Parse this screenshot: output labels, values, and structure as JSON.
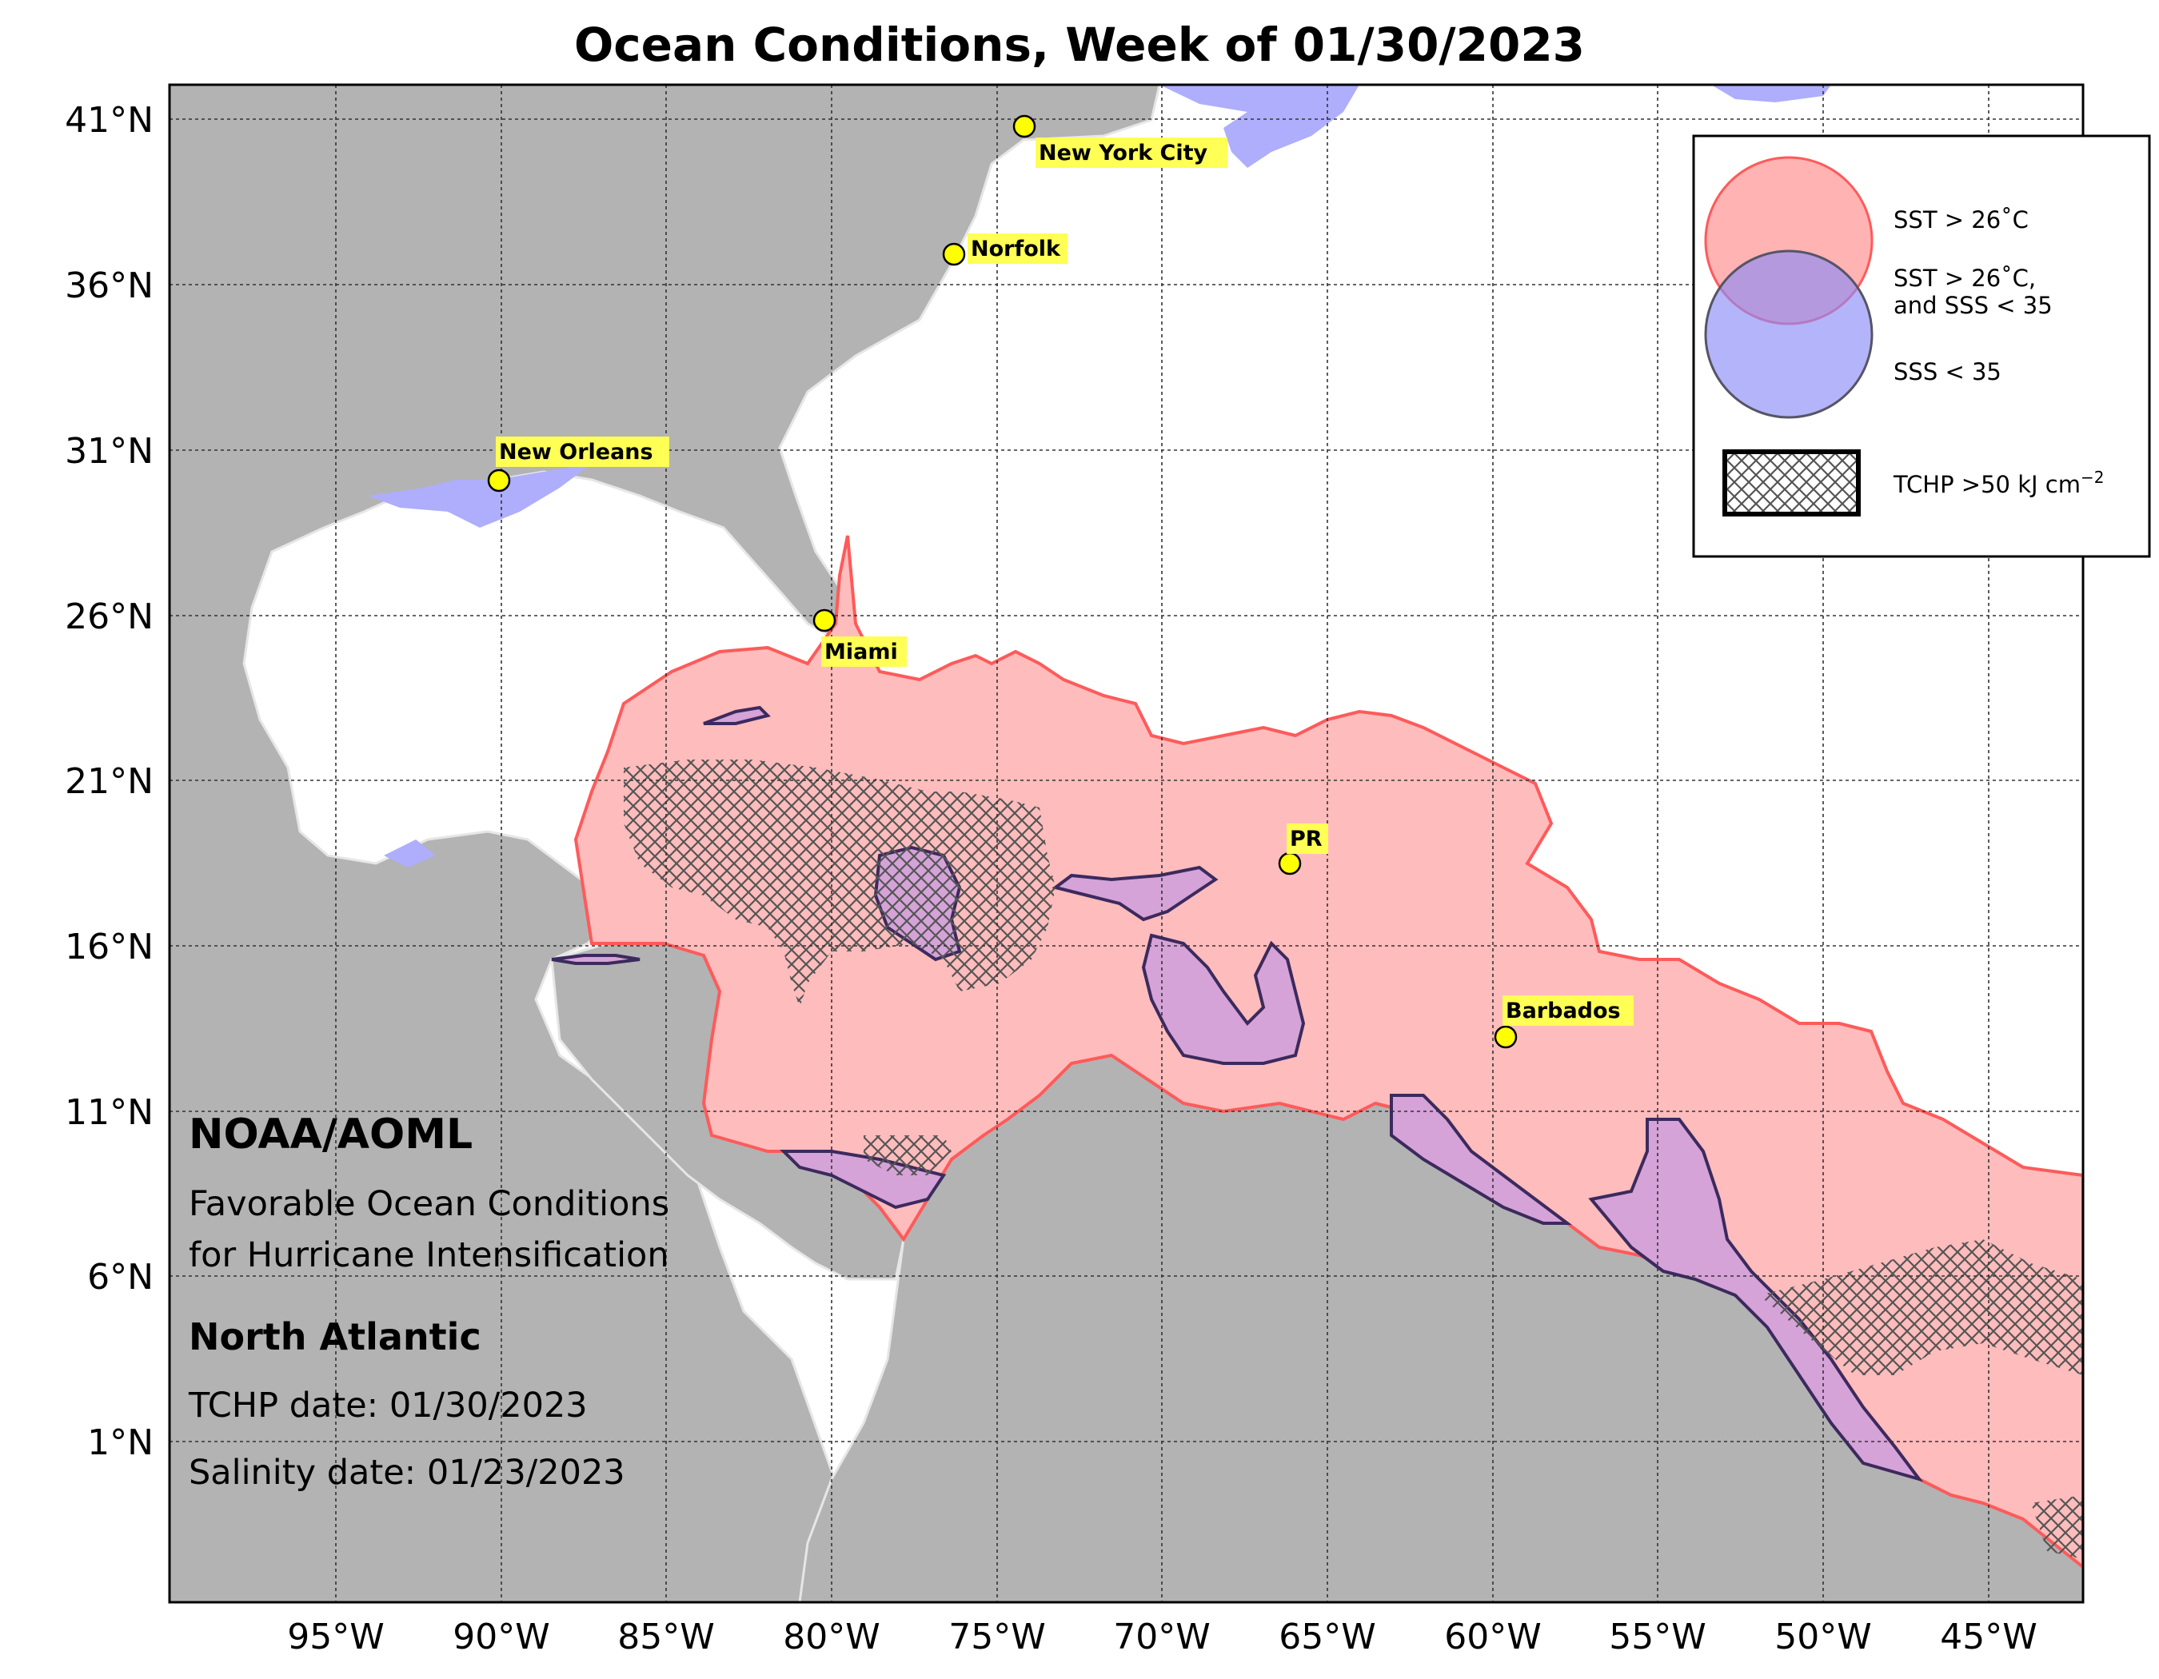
{
  "title": "Ocean Conditions, Week of 01/30/2023",
  "latitude_labels": [
    "41°N",
    "36°N",
    "31°N",
    "26°N",
    "21°N",
    "16°N",
    "11°N",
    "6°N",
    "1°N"
  ],
  "longitude_labels": [
    "95°W",
    "90°W",
    "85°W",
    "80°W",
    "75°W",
    "70°W",
    "65°W",
    "60°W",
    "55°W",
    "50°W",
    "45°W"
  ],
  "cities": [
    {
      "name": "New York City",
      "lon": -74.0,
      "lat": 40.7
    },
    {
      "name": "Norfolk",
      "lon": -76.3,
      "lat": 36.9
    },
    {
      "name": "New Orleans",
      "lon": -90.1,
      "lat": 30.0
    },
    {
      "name": "Miami",
      "lon": -80.2,
      "lat": 25.8
    },
    {
      "name": "PR",
      "lon": -66.1,
      "lat": 18.4
    },
    {
      "name": "Barbados",
      "lon": -59.6,
      "lat": 13.1
    }
  ],
  "legend": {
    "sst": "SST > 26˚C",
    "sst_sss_line1": "SST > 26˚C,",
    "sst_sss_line2": "and SSS < 35",
    "sss": "SSS < 35",
    "tchp": "TCHP >50 kJ cm",
    "tchp_exp": "−2"
  },
  "info": {
    "org": "NOAA/AOML",
    "subtitle_line1": "Favorable Ocean Conditions",
    "subtitle_line2": "for Hurricane Intensification",
    "region": "North Atlantic",
    "tchp_date": "TCHP date: 01/30/2023",
    "salinity_date": "Salinity date: 01/23/2023"
  },
  "colors": {
    "land": "#b3b3b3",
    "borders": "#e6e6e6",
    "sst": "#ffbcbc",
    "sst_edge": "#ff5a5a",
    "sss": "#aeaefc",
    "sst_and_sss": "#d5a3d8",
    "sst_and_sss_edge": "#3c2a5e",
    "city_marker": "#ffff00",
    "label_box": "#ffff55"
  }
}
